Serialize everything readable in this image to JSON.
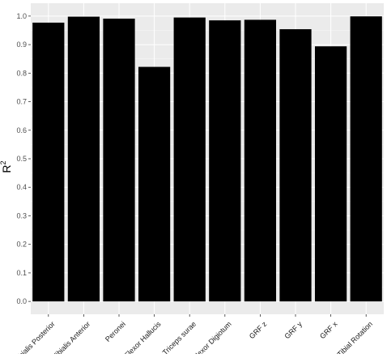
{
  "chart_data": {
    "type": "bar",
    "categories": [
      "Tibialis Posterior",
      "Tibialis Anterior",
      "Peronei",
      "Flexor Hallucis",
      "Triceps surae",
      "Flexor Digiotum",
      "GRF z",
      "GRF y",
      "GRF x",
      "Tibial Rotation"
    ],
    "values": [
      0.977,
      0.998,
      0.991,
      0.822,
      0.995,
      0.985,
      0.987,
      0.954,
      0.894,
      0.999
    ],
    "xlabel": "",
    "ylabel": "R",
    "ylabel_superscript": "2",
    "ylim": [
      0,
      1.0
    ],
    "yticks": [
      "0.0",
      "0.1",
      "0.2",
      "0.3",
      "0.4",
      "0.5",
      "0.6",
      "0.7",
      "0.8",
      "0.9",
      "1.0"
    ],
    "grid": true,
    "legend": "none",
    "bar_color": "#000000",
    "panel_background": "#ebebeb",
    "grid_color": "#ffffff"
  }
}
